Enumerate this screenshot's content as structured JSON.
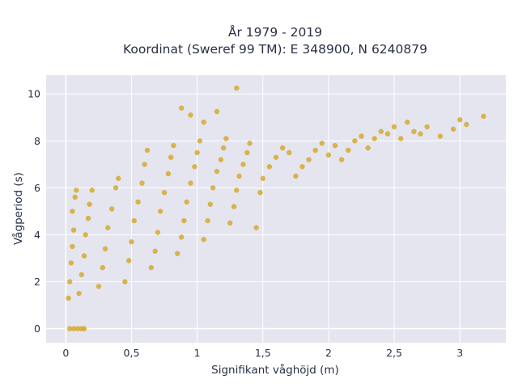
{
  "chart_data": {
    "type": "scatter",
    "title_line1": "År 1979 - 2019",
    "title_line2": "Koordinat (Sweref 99 TM): E 348900, N 6240879",
    "xlabel": "Signifikant våghöjd (m)",
    "ylabel": "Vågperiod (s)",
    "xlim": [
      -0.15,
      3.35
    ],
    "ylim": [
      -0.6,
      10.8
    ],
    "x_ticks": [
      0,
      0.5,
      1,
      1.5,
      2,
      2.5,
      3
    ],
    "x_tick_labels": [
      "0",
      "0,5",
      "1",
      "1,5",
      "2",
      "2,5",
      "3"
    ],
    "y_ticks": [
      0,
      2,
      4,
      6,
      8,
      10
    ],
    "y_tick_labels": [
      "0",
      "2",
      "4",
      "6",
      "8",
      "10"
    ],
    "grid": true,
    "legend": "none",
    "marker_color": "#d4a523",
    "plot_background": "#e5e5ef",
    "series": [
      {
        "points": [
          [
            0.02,
            1.3
          ],
          [
            0.03,
            2.0
          ],
          [
            0.04,
            2.8
          ],
          [
            0.05,
            3.5
          ],
          [
            0.06,
            4.2
          ],
          [
            0.05,
            5.0
          ],
          [
            0.07,
            5.6
          ],
          [
            0.08,
            5.9
          ],
          [
            0.1,
            1.5
          ],
          [
            0.12,
            2.3
          ],
          [
            0.14,
            3.1
          ],
          [
            0.15,
            4.0
          ],
          [
            0.17,
            4.7
          ],
          [
            0.18,
            5.3
          ],
          [
            0.2,
            5.9
          ],
          [
            0.25,
            1.8
          ],
          [
            0.28,
            2.6
          ],
          [
            0.3,
            3.4
          ],
          [
            0.32,
            4.3
          ],
          [
            0.35,
            5.1
          ],
          [
            0.38,
            6.0
          ],
          [
            0.4,
            6.4
          ],
          [
            0.45,
            2.0
          ],
          [
            0.48,
            2.9
          ],
          [
            0.5,
            3.7
          ],
          [
            0.52,
            4.6
          ],
          [
            0.55,
            5.4
          ],
          [
            0.58,
            6.2
          ],
          [
            0.6,
            7.0
          ],
          [
            0.62,
            7.6
          ],
          [
            0.65,
            2.6
          ],
          [
            0.68,
            3.3
          ],
          [
            0.7,
            4.1
          ],
          [
            0.72,
            5.0
          ],
          [
            0.75,
            5.8
          ],
          [
            0.78,
            6.6
          ],
          [
            0.8,
            7.3
          ],
          [
            0.82,
            7.8
          ],
          [
            0.85,
            3.2
          ],
          [
            0.88,
            3.9
          ],
          [
            0.9,
            4.6
          ],
          [
            0.92,
            5.4
          ],
          [
            0.95,
            6.2
          ],
          [
            0.98,
            6.9
          ],
          [
            1.0,
            7.5
          ],
          [
            1.02,
            8.0
          ],
          [
            1.05,
            3.8
          ],
          [
            1.08,
            4.6
          ],
          [
            1.1,
            5.3
          ],
          [
            1.12,
            6.0
          ],
          [
            1.15,
            6.7
          ],
          [
            1.18,
            7.2
          ],
          [
            1.2,
            7.7
          ],
          [
            1.22,
            8.1
          ],
          [
            1.25,
            4.5
          ],
          [
            1.28,
            5.2
          ],
          [
            1.3,
            5.9
          ],
          [
            1.32,
            6.5
          ],
          [
            1.35,
            7.0
          ],
          [
            1.38,
            7.5
          ],
          [
            1.4,
            7.9
          ],
          [
            1.45,
            4.3
          ],
          [
            1.48,
            5.8
          ],
          [
            1.5,
            6.4
          ],
          [
            1.55,
            6.9
          ],
          [
            1.6,
            7.3
          ],
          [
            1.65,
            7.7
          ],
          [
            1.7,
            7.5
          ],
          [
            1.75,
            6.5
          ],
          [
            1.8,
            6.9
          ],
          [
            1.85,
            7.2
          ],
          [
            1.9,
            7.6
          ],
          [
            1.95,
            7.9
          ],
          [
            2.0,
            7.4
          ],
          [
            2.05,
            7.8
          ],
          [
            2.1,
            7.2
          ],
          [
            2.15,
            7.6
          ],
          [
            2.2,
            8.0
          ],
          [
            2.25,
            8.2
          ],
          [
            2.3,
            7.7
          ],
          [
            2.35,
            8.1
          ],
          [
            2.4,
            8.4
          ],
          [
            2.45,
            8.3
          ],
          [
            2.5,
            8.6
          ],
          [
            2.55,
            8.1
          ],
          [
            2.6,
            8.8
          ],
          [
            2.65,
            8.4
          ],
          [
            2.7,
            8.3
          ],
          [
            2.75,
            8.6
          ],
          [
            2.85,
            8.2
          ],
          [
            2.95,
            8.5
          ],
          [
            3.0,
            8.9
          ],
          [
            3.05,
            8.7
          ],
          [
            3.18,
            9.05
          ],
          [
            1.3,
            10.25
          ],
          [
            0.88,
            9.4
          ],
          [
            0.95,
            9.1
          ],
          [
            1.15,
            9.25
          ],
          [
            1.05,
            8.8
          ],
          [
            0.03,
            0.0
          ],
          [
            0.06,
            0.0
          ],
          [
            0.09,
            0.0
          ],
          [
            0.12,
            0.0
          ],
          [
            0.14,
            0.0
          ]
        ]
      }
    ]
  }
}
